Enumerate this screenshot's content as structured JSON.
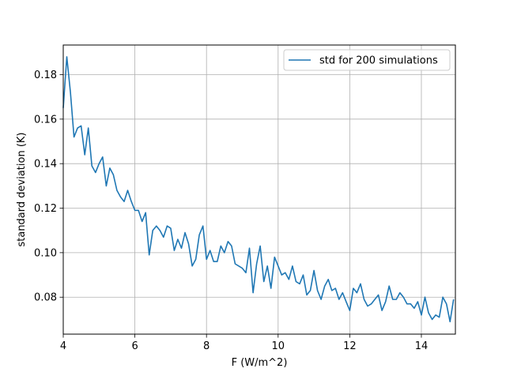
{
  "chart_data": {
    "type": "line",
    "xlabel": "F (W/m^2)",
    "ylabel": "standard deviation (K)",
    "xlim": [
      4,
      14.95
    ],
    "ylim": [
      0.0634,
      0.1933
    ],
    "xticks": [
      4,
      6,
      8,
      10,
      12,
      14
    ],
    "xtick_labels": [
      "4",
      "6",
      "8",
      "10",
      "12",
      "14"
    ],
    "yticks": [
      0.08,
      0.1,
      0.12,
      0.14,
      0.16,
      0.18
    ],
    "ytick_labels": [
      "0.08",
      "0.10",
      "0.12",
      "0.14",
      "0.16",
      "0.18"
    ],
    "grid": true,
    "legend_position": "top-right",
    "series": [
      {
        "name": "std for 200 simulations",
        "color": "#1f77b4",
        "x": [
          4.0,
          4.1,
          4.2,
          4.3,
          4.4,
          4.5,
          4.6,
          4.7,
          4.8,
          4.9,
          5.0,
          5.1,
          5.2,
          5.3,
          5.4,
          5.5,
          5.6,
          5.7,
          5.8,
          5.9,
          6.0,
          6.1,
          6.2,
          6.3,
          6.4,
          6.5,
          6.6,
          6.7,
          6.8,
          6.9,
          7.0,
          7.1,
          7.2,
          7.3,
          7.4,
          7.5,
          7.6,
          7.7,
          7.8,
          7.9,
          8.0,
          8.1,
          8.2,
          8.3,
          8.4,
          8.5,
          8.6,
          8.7,
          8.8,
          8.9,
          9.0,
          9.1,
          9.2,
          9.3,
          9.4,
          9.5,
          9.6,
          9.7,
          9.8,
          9.9,
          10.0,
          10.1,
          10.2,
          10.3,
          10.4,
          10.5,
          10.6,
          10.7,
          10.8,
          10.9,
          11.0,
          11.1,
          11.2,
          11.3,
          11.4,
          11.5,
          11.6,
          11.7,
          11.8,
          11.9,
          12.0,
          12.1,
          12.2,
          12.3,
          12.4,
          12.5,
          12.6,
          12.7,
          12.8,
          12.9,
          13.0,
          13.1,
          13.2,
          13.3,
          13.4,
          13.5,
          13.6,
          13.7,
          13.8,
          13.9,
          14.0,
          14.1,
          14.2,
          14.3,
          14.4,
          14.5,
          14.6,
          14.7,
          14.8,
          14.9
        ],
        "y": [
          0.165,
          0.188,
          0.172,
          0.152,
          0.156,
          0.157,
          0.144,
          0.156,
          0.139,
          0.136,
          0.14,
          0.143,
          0.13,
          0.138,
          0.135,
          0.128,
          0.125,
          0.123,
          0.128,
          0.123,
          0.119,
          0.119,
          0.114,
          0.118,
          0.099,
          0.11,
          0.112,
          0.11,
          0.107,
          0.112,
          0.111,
          0.101,
          0.106,
          0.102,
          0.109,
          0.104,
          0.094,
          0.097,
          0.108,
          0.112,
          0.097,
          0.101,
          0.096,
          0.096,
          0.103,
          0.1,
          0.105,
          0.103,
          0.095,
          0.094,
          0.093,
          0.091,
          0.102,
          0.082,
          0.095,
          0.103,
          0.087,
          0.094,
          0.084,
          0.098,
          0.094,
          0.09,
          0.091,
          0.088,
          0.094,
          0.087,
          0.086,
          0.09,
          0.081,
          0.083,
          0.092,
          0.083,
          0.079,
          0.085,
          0.088,
          0.083,
          0.084,
          0.079,
          0.082,
          0.078,
          0.074,
          0.084,
          0.082,
          0.086,
          0.079,
          0.076,
          0.077,
          0.079,
          0.081,
          0.074,
          0.078,
          0.085,
          0.079,
          0.079,
          0.082,
          0.08,
          0.077,
          0.077,
          0.075,
          0.078,
          0.072,
          0.08,
          0.073,
          0.07,
          0.072,
          0.071,
          0.08,
          0.077,
          0.069,
          0.079
        ]
      }
    ]
  }
}
